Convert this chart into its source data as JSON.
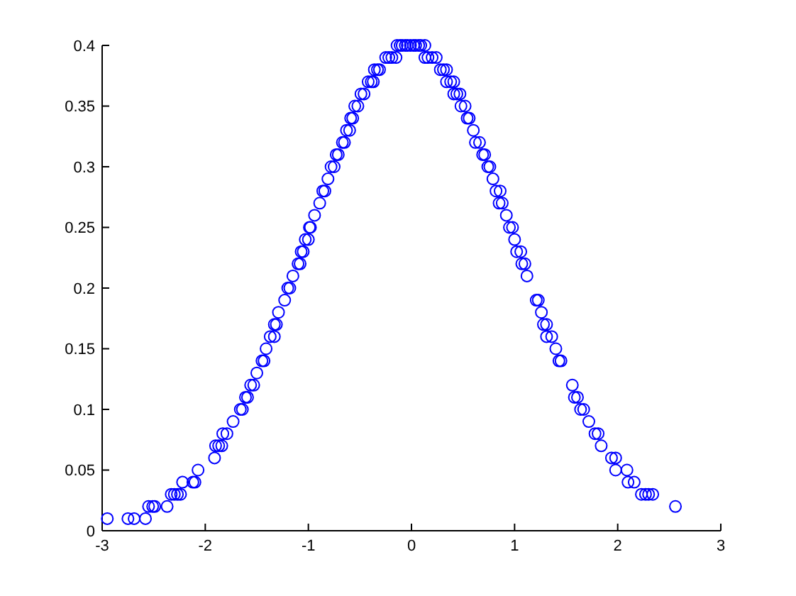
{
  "chart_data": {
    "type": "scatter",
    "color": "#0000ff",
    "marker": "circle",
    "grid": false,
    "xlim": [
      -3,
      3
    ],
    "ylim": [
      0,
      0.4
    ],
    "xticks": [
      -3,
      -2,
      -1,
      0,
      1,
      2,
      3
    ],
    "yticks": [
      0,
      0.05,
      0.1,
      0.15,
      0.2,
      0.25,
      0.3,
      0.35,
      0.4
    ],
    "x": [
      -2.95,
      -2.75,
      -2.69,
      -2.58,
      -2.55,
      -2.51,
      -2.49,
      -2.37,
      -2.33,
      -2.3,
      -2.27,
      -2.24,
      -2.22,
      -2.12,
      -2.1,
      -2.07,
      -1.91,
      -1.9,
      -1.87,
      -1.84,
      -1.83,
      -1.79,
      -1.73,
      -1.66,
      -1.64,
      -1.61,
      -1.59,
      -1.56,
      -1.53,
      -1.5,
      -1.45,
      -1.43,
      -1.41,
      -1.37,
      -1.33,
      -1.33,
      -1.31,
      -1.29,
      -1.23,
      -1.2,
      -1.18,
      -1.15,
      -1.1,
      -1.08,
      -1.07,
      -1.05,
      -1.03,
      -1.0,
      -0.99,
      -0.98,
      -0.94,
      -0.89,
      -0.86,
      -0.84,
      -0.81,
      -0.78,
      -0.75,
      -0.73,
      -0.71,
      -0.67,
      -0.65,
      -0.63,
      -0.6,
      -0.59,
      -0.57,
      -0.55,
      -0.52,
      -0.49,
      -0.46,
      -0.42,
      -0.39,
      -0.37,
      -0.36,
      -0.33,
      -0.31,
      -0.25,
      -0.22,
      -0.19,
      -0.15,
      -0.14,
      -0.11,
      -0.09,
      -0.06,
      -0.04,
      -0.01,
      0.02,
      0.04,
      0.07,
      0.09,
      0.13,
      0.13,
      0.16,
      0.2,
      0.24,
      0.28,
      0.31,
      0.34,
      0.34,
      0.38,
      0.41,
      0.41,
      0.44,
      0.47,
      0.48,
      0.52,
      0.54,
      0.56,
      0.6,
      0.62,
      0.66,
      0.69,
      0.71,
      0.74,
      0.76,
      0.79,
      0.82,
      0.86,
      0.85,
      0.88,
      0.92,
      0.95,
      0.98,
      1.0,
      1.02,
      1.06,
      1.07,
      1.1,
      1.12,
      1.21,
      1.23,
      1.26,
      1.28,
      1.31,
      1.31,
      1.36,
      1.4,
      1.43,
      1.45,
      1.56,
      1.58,
      1.61,
      1.64,
      1.67,
      1.72,
      1.78,
      1.81,
      1.84,
      1.94,
      1.98,
      1.98,
      2.09,
      2.1,
      2.16,
      2.23,
      2.27,
      2.3,
      2.34,
      2.56
    ],
    "values": [
      0.01,
      0.01,
      0.01,
      0.01,
      0.02,
      0.02,
      0.02,
      0.02,
      0.03,
      0.03,
      0.03,
      0.03,
      0.04,
      0.04,
      0.04,
      0.05,
      0.06,
      0.07,
      0.07,
      0.07,
      0.08,
      0.08,
      0.09,
      0.1,
      0.1,
      0.11,
      0.11,
      0.12,
      0.12,
      0.13,
      0.14,
      0.14,
      0.15,
      0.16,
      0.16,
      0.17,
      0.17,
      0.18,
      0.19,
      0.2,
      0.2,
      0.21,
      0.22,
      0.22,
      0.23,
      0.23,
      0.24,
      0.24,
      0.25,
      0.25,
      0.26,
      0.27,
      0.28,
      0.28,
      0.29,
      0.3,
      0.3,
      0.31,
      0.31,
      0.32,
      0.32,
      0.33,
      0.33,
      0.34,
      0.34,
      0.35,
      0.35,
      0.36,
      0.36,
      0.37,
      0.37,
      0.37,
      0.38,
      0.38,
      0.38,
      0.39,
      0.39,
      0.39,
      0.39,
      0.4,
      0.4,
      0.4,
      0.4,
      0.4,
      0.4,
      0.4,
      0.4,
      0.4,
      0.4,
      0.4,
      0.39,
      0.39,
      0.39,
      0.39,
      0.38,
      0.38,
      0.38,
      0.37,
      0.37,
      0.37,
      0.36,
      0.36,
      0.36,
      0.35,
      0.35,
      0.34,
      0.34,
      0.33,
      0.32,
      0.32,
      0.31,
      0.31,
      0.3,
      0.3,
      0.29,
      0.28,
      0.28,
      0.27,
      0.27,
      0.26,
      0.25,
      0.25,
      0.24,
      0.23,
      0.23,
      0.22,
      0.22,
      0.21,
      0.19,
      0.19,
      0.18,
      0.17,
      0.17,
      0.16,
      0.16,
      0.15,
      0.14,
      0.14,
      0.12,
      0.11,
      0.11,
      0.1,
      0.1,
      0.09,
      0.08,
      0.08,
      0.07,
      0.06,
      0.06,
      0.05,
      0.05,
      0.04,
      0.04,
      0.03,
      0.03,
      0.03,
      0.03,
      0.02
    ]
  }
}
